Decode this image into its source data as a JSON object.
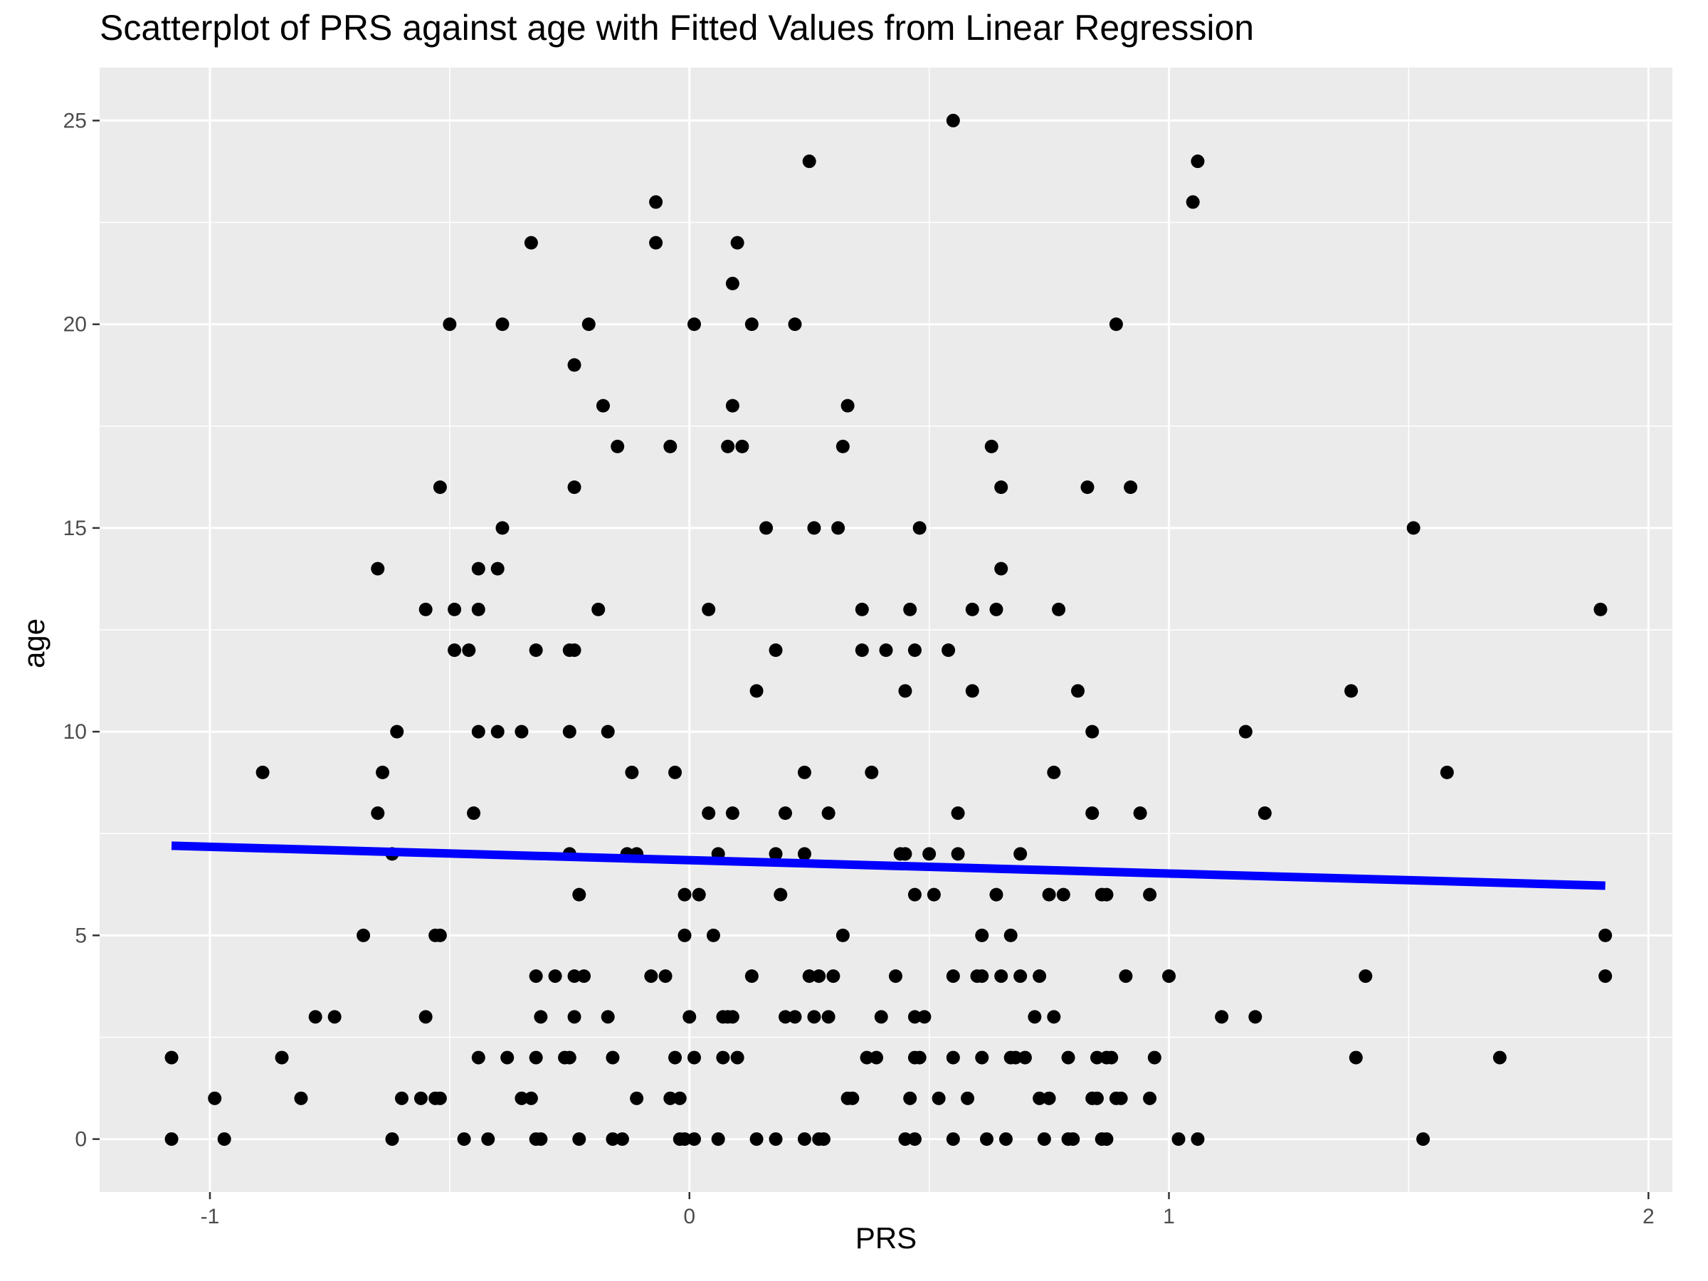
{
  "chart_data": {
    "type": "scatter",
    "title": "Scatterplot of PRS against age with Fitted Values from Linear Regression",
    "xlabel": "PRS",
    "ylabel": "age",
    "xlim": [
      -1.23,
      2.05
    ],
    "ylim": [
      -1.3,
      26.3
    ],
    "x_ticks": [
      -1,
      0,
      1,
      2
    ],
    "x_tick_labels": [
      "-1",
      "0",
      "1",
      "2"
    ],
    "y_ticks": [
      0,
      5,
      10,
      15,
      20,
      25
    ],
    "y_tick_labels": [
      "0",
      "5",
      "10",
      "15",
      "20",
      "25"
    ],
    "grid": true,
    "background": "#EBEBEB",
    "gridline_color": "#FFFFFF",
    "point_color": "#000000",
    "line_color": "#0000FF",
    "points": [
      {
        "x": -1.08,
        "y": 2
      },
      {
        "x": -1.08,
        "y": 0
      },
      {
        "x": -0.99,
        "y": 1
      },
      {
        "x": -0.97,
        "y": 0
      },
      {
        "x": -0.89,
        "y": 9
      },
      {
        "x": -0.85,
        "y": 2
      },
      {
        "x": -0.81,
        "y": 1
      },
      {
        "x": -0.78,
        "y": 3
      },
      {
        "x": -0.74,
        "y": 3
      },
      {
        "x": -0.68,
        "y": 5
      },
      {
        "x": -0.65,
        "y": 14
      },
      {
        "x": -0.65,
        "y": 8
      },
      {
        "x": -0.64,
        "y": 9
      },
      {
        "x": -0.62,
        "y": 7
      },
      {
        "x": -0.62,
        "y": 0
      },
      {
        "x": -0.61,
        "y": 10
      },
      {
        "x": -0.6,
        "y": 1
      },
      {
        "x": -0.56,
        "y": 1
      },
      {
        "x": -0.55,
        "y": 3
      },
      {
        "x": -0.55,
        "y": 13
      },
      {
        "x": -0.53,
        "y": 5
      },
      {
        "x": -0.53,
        "y": 1
      },
      {
        "x": -0.52,
        "y": 16
      },
      {
        "x": -0.52,
        "y": 5
      },
      {
        "x": -0.52,
        "y": 1
      },
      {
        "x": -0.5,
        "y": 20
      },
      {
        "x": -0.49,
        "y": 13
      },
      {
        "x": -0.49,
        "y": 12
      },
      {
        "x": -0.46,
        "y": 12
      },
      {
        "x": -0.47,
        "y": 0
      },
      {
        "x": -0.45,
        "y": 8
      },
      {
        "x": -0.44,
        "y": 14
      },
      {
        "x": -0.44,
        "y": 13
      },
      {
        "x": -0.44,
        "y": 10
      },
      {
        "x": -0.44,
        "y": 2
      },
      {
        "x": -0.42,
        "y": 0
      },
      {
        "x": -0.4,
        "y": 14
      },
      {
        "x": -0.4,
        "y": 10
      },
      {
        "x": -0.39,
        "y": 15
      },
      {
        "x": -0.39,
        "y": 20
      },
      {
        "x": -0.38,
        "y": 2
      },
      {
        "x": -0.35,
        "y": 10
      },
      {
        "x": -0.35,
        "y": 1
      },
      {
        "x": -0.33,
        "y": 22
      },
      {
        "x": -0.32,
        "y": 12
      },
      {
        "x": -0.32,
        "y": 4
      },
      {
        "x": -0.32,
        "y": 2
      },
      {
        "x": -0.33,
        "y": 1
      },
      {
        "x": -0.32,
        "y": 0
      },
      {
        "x": -0.31,
        "y": 3
      },
      {
        "x": -0.31,
        "y": 0
      },
      {
        "x": -0.28,
        "y": 4
      },
      {
        "x": -0.26,
        "y": 2
      },
      {
        "x": -0.25,
        "y": 12
      },
      {
        "x": -0.25,
        "y": 10
      },
      {
        "x": -0.25,
        "y": 7
      },
      {
        "x": -0.25,
        "y": 2
      },
      {
        "x": -0.24,
        "y": 19
      },
      {
        "x": -0.24,
        "y": 16
      },
      {
        "x": -0.24,
        "y": 12
      },
      {
        "x": -0.24,
        "y": 4
      },
      {
        "x": -0.24,
        "y": 3
      },
      {
        "x": -0.23,
        "y": 6
      },
      {
        "x": -0.23,
        "y": 0
      },
      {
        "x": -0.22,
        "y": 4
      },
      {
        "x": -0.21,
        "y": 20
      },
      {
        "x": -0.19,
        "y": 13
      },
      {
        "x": -0.18,
        "y": 18
      },
      {
        "x": -0.17,
        "y": 10
      },
      {
        "x": -0.17,
        "y": 3
      },
      {
        "x": -0.16,
        "y": 2
      },
      {
        "x": -0.16,
        "y": 0
      },
      {
        "x": -0.15,
        "y": 17
      },
      {
        "x": -0.14,
        "y": 0
      },
      {
        "x": -0.13,
        "y": 7
      },
      {
        "x": -0.12,
        "y": 9
      },
      {
        "x": -0.11,
        "y": 1
      },
      {
        "x": -0.11,
        "y": 7
      },
      {
        "x": -0.08,
        "y": 4
      },
      {
        "x": -0.07,
        "y": 23
      },
      {
        "x": -0.07,
        "y": 22
      },
      {
        "x": -0.05,
        "y": 4
      },
      {
        "x": -0.04,
        "y": 17
      },
      {
        "x": -0.04,
        "y": 1
      },
      {
        "x": -0.03,
        "y": 9
      },
      {
        "x": -0.03,
        "y": 2
      },
      {
        "x": -0.02,
        "y": 1
      },
      {
        "x": -0.02,
        "y": 0
      },
      {
        "x": -0.01,
        "y": 6
      },
      {
        "x": -0.01,
        "y": 5
      },
      {
        "x": -0.01,
        "y": 0
      },
      {
        "x": 0.0,
        "y": 3
      },
      {
        "x": 0.01,
        "y": 20
      },
      {
        "x": 0.01,
        "y": 2
      },
      {
        "x": 0.01,
        "y": 0
      },
      {
        "x": 0.02,
        "y": 6
      },
      {
        "x": 0.04,
        "y": 13
      },
      {
        "x": 0.04,
        "y": 8
      },
      {
        "x": 0.05,
        "y": 5
      },
      {
        "x": 0.06,
        "y": 7
      },
      {
        "x": 0.06,
        "y": 0
      },
      {
        "x": 0.07,
        "y": 3
      },
      {
        "x": 0.07,
        "y": 2
      },
      {
        "x": 0.08,
        "y": 17
      },
      {
        "x": 0.08,
        "y": 3
      },
      {
        "x": 0.09,
        "y": 21
      },
      {
        "x": 0.09,
        "y": 18
      },
      {
        "x": 0.09,
        "y": 8
      },
      {
        "x": 0.09,
        "y": 3
      },
      {
        "x": 0.1,
        "y": 22
      },
      {
        "x": 0.1,
        "y": 2
      },
      {
        "x": 0.11,
        "y": 17
      },
      {
        "x": 0.13,
        "y": 20
      },
      {
        "x": 0.13,
        "y": 4
      },
      {
        "x": 0.14,
        "y": 11
      },
      {
        "x": 0.14,
        "y": 0
      },
      {
        "x": 0.16,
        "y": 15
      },
      {
        "x": 0.18,
        "y": 12
      },
      {
        "x": 0.18,
        "y": 7
      },
      {
        "x": 0.18,
        "y": 0
      },
      {
        "x": 0.19,
        "y": 6
      },
      {
        "x": 0.2,
        "y": 3
      },
      {
        "x": 0.2,
        "y": 8
      },
      {
        "x": 0.22,
        "y": 20
      },
      {
        "x": 0.22,
        "y": 3
      },
      {
        "x": 0.24,
        "y": 9
      },
      {
        "x": 0.24,
        "y": 7
      },
      {
        "x": 0.24,
        "y": 0
      },
      {
        "x": 0.25,
        "y": 4
      },
      {
        "x": 0.25,
        "y": 24
      },
      {
        "x": 0.26,
        "y": 15
      },
      {
        "x": 0.26,
        "y": 3
      },
      {
        "x": 0.27,
        "y": 4
      },
      {
        "x": 0.27,
        "y": 0
      },
      {
        "x": 0.28,
        "y": 0
      },
      {
        "x": 0.29,
        "y": 8
      },
      {
        "x": 0.29,
        "y": 3
      },
      {
        "x": 0.3,
        "y": 4
      },
      {
        "x": 0.31,
        "y": 15
      },
      {
        "x": 0.32,
        "y": 17
      },
      {
        "x": 0.32,
        "y": 5
      },
      {
        "x": 0.33,
        "y": 18
      },
      {
        "x": 0.33,
        "y": 1
      },
      {
        "x": 0.34,
        "y": 1
      },
      {
        "x": 0.36,
        "y": 13
      },
      {
        "x": 0.36,
        "y": 12
      },
      {
        "x": 0.37,
        "y": 2
      },
      {
        "x": 0.38,
        "y": 9
      },
      {
        "x": 0.39,
        "y": 2
      },
      {
        "x": 0.4,
        "y": 3
      },
      {
        "x": 0.41,
        "y": 12
      },
      {
        "x": 0.43,
        "y": 4
      },
      {
        "x": 0.44,
        "y": 7
      },
      {
        "x": 0.45,
        "y": 7
      },
      {
        "x": 0.45,
        "y": 11
      },
      {
        "x": 0.45,
        "y": 0
      },
      {
        "x": 0.46,
        "y": 13
      },
      {
        "x": 0.46,
        "y": 1
      },
      {
        "x": 0.47,
        "y": 12
      },
      {
        "x": 0.47,
        "y": 6
      },
      {
        "x": 0.47,
        "y": 3
      },
      {
        "x": 0.47,
        "y": 2
      },
      {
        "x": 0.47,
        "y": 0
      },
      {
        "x": 0.48,
        "y": 15
      },
      {
        "x": 0.48,
        "y": 2
      },
      {
        "x": 0.49,
        "y": 3
      },
      {
        "x": 0.5,
        "y": 7
      },
      {
        "x": 0.51,
        "y": 6
      },
      {
        "x": 0.52,
        "y": 1
      },
      {
        "x": 0.54,
        "y": 12
      },
      {
        "x": 0.55,
        "y": 25
      },
      {
        "x": 0.55,
        "y": 4
      },
      {
        "x": 0.55,
        "y": 2
      },
      {
        "x": 0.55,
        "y": 0
      },
      {
        "x": 0.56,
        "y": 8
      },
      {
        "x": 0.56,
        "y": 7
      },
      {
        "x": 0.58,
        "y": 1
      },
      {
        "x": 0.59,
        "y": 13
      },
      {
        "x": 0.59,
        "y": 11
      },
      {
        "x": 0.6,
        "y": 4
      },
      {
        "x": 0.61,
        "y": 5
      },
      {
        "x": 0.61,
        "y": 4
      },
      {
        "x": 0.61,
        "y": 2
      },
      {
        "x": 0.62,
        "y": 0
      },
      {
        "x": 0.63,
        "y": 17
      },
      {
        "x": 0.64,
        "y": 13
      },
      {
        "x": 0.64,
        "y": 6
      },
      {
        "x": 0.65,
        "y": 16
      },
      {
        "x": 0.65,
        "y": 14
      },
      {
        "x": 0.65,
        "y": 4
      },
      {
        "x": 0.66,
        "y": 0
      },
      {
        "x": 0.67,
        "y": 5
      },
      {
        "x": 0.67,
        "y": 2
      },
      {
        "x": 0.68,
        "y": 2
      },
      {
        "x": 0.69,
        "y": 7
      },
      {
        "x": 0.69,
        "y": 4
      },
      {
        "x": 0.7,
        "y": 2
      },
      {
        "x": 0.72,
        "y": 3
      },
      {
        "x": 0.73,
        "y": 4
      },
      {
        "x": 0.73,
        "y": 1
      },
      {
        "x": 0.74,
        "y": 0
      },
      {
        "x": 0.75,
        "y": 6
      },
      {
        "x": 0.75,
        "y": 1
      },
      {
        "x": 0.76,
        "y": 9
      },
      {
        "x": 0.76,
        "y": 3
      },
      {
        "x": 0.77,
        "y": 13
      },
      {
        "x": 0.78,
        "y": 6
      },
      {
        "x": 0.79,
        "y": 2
      },
      {
        "x": 0.79,
        "y": 0
      },
      {
        "x": 0.8,
        "y": 0
      },
      {
        "x": 0.81,
        "y": 11
      },
      {
        "x": 0.83,
        "y": 16
      },
      {
        "x": 0.84,
        "y": 1
      },
      {
        "x": 0.84,
        "y": 10
      },
      {
        "x": 0.84,
        "y": 8
      },
      {
        "x": 0.85,
        "y": 1
      },
      {
        "x": 0.85,
        "y": 2
      },
      {
        "x": 0.86,
        "y": 6
      },
      {
        "x": 0.86,
        "y": 0
      },
      {
        "x": 0.87,
        "y": 0
      },
      {
        "x": 0.87,
        "y": 6
      },
      {
        "x": 0.87,
        "y": 2
      },
      {
        "x": 0.88,
        "y": 2
      },
      {
        "x": 0.89,
        "y": 20
      },
      {
        "x": 0.89,
        "y": 1
      },
      {
        "x": 0.9,
        "y": 1
      },
      {
        "x": 0.91,
        "y": 4
      },
      {
        "x": 0.92,
        "y": 16
      },
      {
        "x": 0.94,
        "y": 8
      },
      {
        "x": 0.96,
        "y": 6
      },
      {
        "x": 0.96,
        "y": 1
      },
      {
        "x": 0.97,
        "y": 2
      },
      {
        "x": 1.0,
        "y": 4
      },
      {
        "x": 1.02,
        "y": 0
      },
      {
        "x": 1.05,
        "y": 23
      },
      {
        "x": 1.06,
        "y": 24
      },
      {
        "x": 1.06,
        "y": 0
      },
      {
        "x": 1.11,
        "y": 3
      },
      {
        "x": 1.16,
        "y": 10
      },
      {
        "x": 1.18,
        "y": 3
      },
      {
        "x": 1.2,
        "y": 8
      },
      {
        "x": 1.38,
        "y": 11
      },
      {
        "x": 1.39,
        "y": 2
      },
      {
        "x": 1.41,
        "y": 4
      },
      {
        "x": 1.51,
        "y": 15
      },
      {
        "x": 1.53,
        "y": 0
      },
      {
        "x": 1.58,
        "y": 9
      },
      {
        "x": 1.69,
        "y": 2
      },
      {
        "x": 1.9,
        "y": 13
      },
      {
        "x": 1.91,
        "y": 5
      },
      {
        "x": 1.91,
        "y": 4
      }
    ],
    "fit_line": {
      "x": [
        -1.08,
        1.91
      ],
      "y": [
        7.2,
        6.22
      ]
    }
  }
}
